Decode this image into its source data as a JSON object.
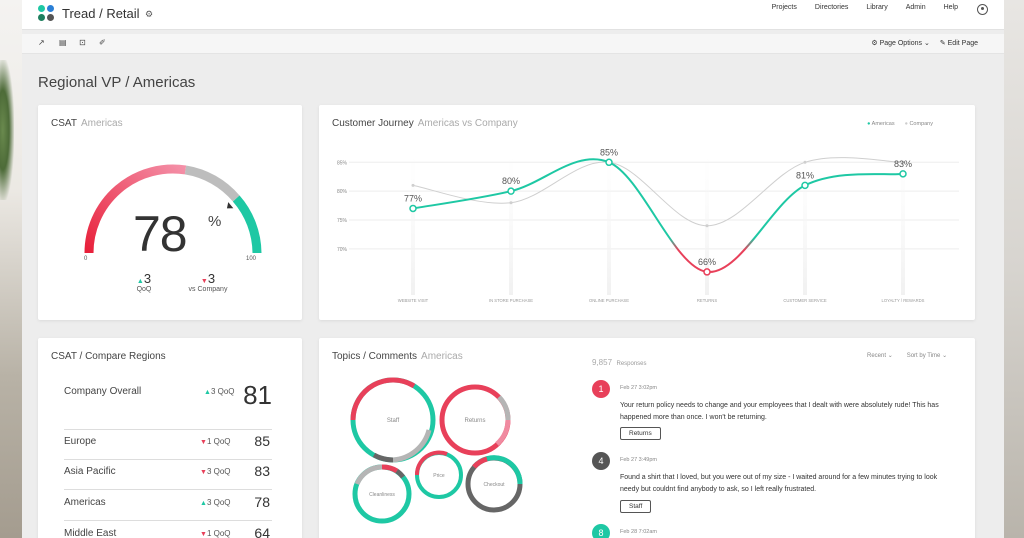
{
  "app": {
    "title": "Tread / Retail"
  },
  "nav": [
    "Projects",
    "Directories",
    "Library",
    "Admin",
    "Help"
  ],
  "toolbar": {
    "page_options": "Page Options",
    "edit_page": "Edit Page"
  },
  "page": {
    "title": "Regional VP  /  Americas"
  },
  "csat": {
    "title": "CSAT",
    "subtitle": "Americas",
    "value": "78",
    "unit": "%",
    "min": "0",
    "max": "100",
    "qoq_value": "3",
    "qoq_label": "QoQ",
    "vs_value": "3",
    "vs_label": "vs Company",
    "fraction": 0.78
  },
  "journey": {
    "title": "Customer Journey",
    "subtitle": "Americas vs Company",
    "legend": [
      "Americas",
      "Company"
    ]
  },
  "chart_data": {
    "type": "line",
    "categories": [
      "WEBSITE VISIT",
      "IN STORE PURCHASE",
      "ONLINE PURCHASE",
      "RETURNS",
      "CUSTOMER SERVICE",
      "LOYALTY / REWARDS"
    ],
    "series": [
      {
        "name": "Americas",
        "values": [
          77,
          80,
          85,
          66,
          81,
          83
        ],
        "labels": [
          "77%",
          "80%",
          "85%",
          "66%",
          "81%",
          "83%"
        ]
      },
      {
        "name": "Company",
        "values": [
          81,
          78,
          85,
          74,
          85,
          85
        ]
      }
    ],
    "yticks": [
      "85%",
      "80%",
      "75%",
      "70%"
    ],
    "ylim": [
      62,
      88
    ],
    "grid": true,
    "legend_position": "top-right",
    "colors": {
      "americas": "#1ec8a4",
      "americas_low": "#e8405a",
      "company": "#cccccc"
    }
  },
  "compare": {
    "title": "CSAT  /  Compare Regions",
    "overall": {
      "name": "Company Overall",
      "change": "3",
      "label": "QoQ",
      "value": "81"
    },
    "rows": [
      {
        "name": "Europe",
        "dir": "down",
        "change": "1",
        "label": "QoQ",
        "value": "85"
      },
      {
        "name": "Asia Pacific",
        "dir": "down",
        "change": "3",
        "label": "QoQ",
        "value": "83"
      },
      {
        "name": "Americas",
        "dir": "up",
        "change": "3",
        "label": "QoQ",
        "value": "78"
      },
      {
        "name": "Middle East",
        "dir": "down",
        "change": "1",
        "label": "QoQ",
        "value": "64"
      }
    ]
  },
  "topics": {
    "title": "Topics / Comments",
    "subtitle": "Americas",
    "responses_count": "9,857",
    "responses_label": "Responses",
    "sort_recent": "Recent",
    "sort_time": "Sort by Time",
    "bubbles": [
      "Staff",
      "Returns",
      "Price",
      "Checkout",
      "Cleanliness"
    ]
  },
  "comments": [
    {
      "badge": "1",
      "date": "Feb 27   3:02pm",
      "text": "Your return policy needs to change and your employees that I dealt with were absolutely rude!  This has happened more than once.  I won't be returning.",
      "tag": "Returns",
      "color": "#e8405a"
    },
    {
      "badge": "4",
      "date": "Feb 27   3:49pm",
      "text": "Found a shirt that I loved, but you were out of my size - I waited around for a few minutes trying to look needy but couldnt find anybody to ask, so I left really frustrated.",
      "tag": "Staff",
      "color": "#555555"
    },
    {
      "badge": "8",
      "date": "Feb 28   7:02am",
      "text": "",
      "tag": "",
      "color": "#1ec8a4"
    }
  ],
  "colors": {
    "teal": "#1ec8a4",
    "red": "#e8405a",
    "pink": "#f08aa0",
    "gray": "#b5b5b5",
    "dark": "#666666"
  },
  "icons": [
    "trend-icon",
    "document-icon",
    "export-icon",
    "pin-icon",
    "gear-icon",
    "pencil-icon",
    "user-icon"
  ]
}
